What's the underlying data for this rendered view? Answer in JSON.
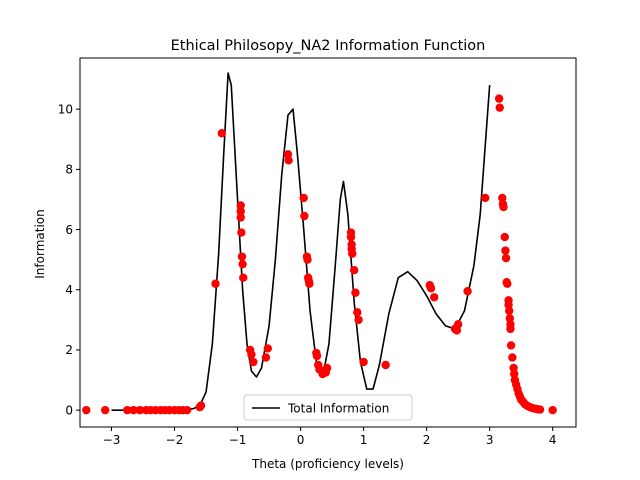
{
  "chart_data": {
    "type": "scatter",
    "title": "Ethical Philosopy_NA2 Information Function",
    "xlabel": "Theta (proficiency levels)",
    "ylabel": "Information",
    "xlim": [
      -3.5,
      4.37
    ],
    "ylim": [
      -0.56,
      11.7
    ],
    "xticks": [
      -3,
      -2,
      -1,
      0,
      1,
      2,
      3,
      4
    ],
    "yticks": [
      0,
      2,
      4,
      6,
      8,
      10
    ],
    "grid": false,
    "legend": {
      "position": "lower-center",
      "entries": [
        "Total Information"
      ]
    },
    "series": [
      {
        "name": "Total Information",
        "kind": "line",
        "color": "#000000",
        "points": [
          [
            -3.0,
            0.0
          ],
          [
            -2.5,
            0.0
          ],
          [
            -2.0,
            0.01
          ],
          [
            -1.8,
            0.02
          ],
          [
            -1.7,
            0.05
          ],
          [
            -1.6,
            0.15
          ],
          [
            -1.5,
            0.6
          ],
          [
            -1.4,
            2.2
          ],
          [
            -1.3,
            5.2
          ],
          [
            -1.22,
            8.5
          ],
          [
            -1.15,
            11.2
          ],
          [
            -1.1,
            10.8
          ],
          [
            -1.0,
            7.0
          ],
          [
            -0.92,
            4.0
          ],
          [
            -0.85,
            2.2
          ],
          [
            -0.78,
            1.3
          ],
          [
            -0.7,
            1.1
          ],
          [
            -0.62,
            1.4
          ],
          [
            -0.5,
            2.8
          ],
          [
            -0.4,
            5.0
          ],
          [
            -0.3,
            7.8
          ],
          [
            -0.2,
            9.8
          ],
          [
            -0.12,
            10.0
          ],
          [
            -0.05,
            8.5
          ],
          [
            0.05,
            6.0
          ],
          [
            0.15,
            3.3
          ],
          [
            0.25,
            1.6
          ],
          [
            0.35,
            1.1
          ],
          [
            0.45,
            2.2
          ],
          [
            0.55,
            4.8
          ],
          [
            0.63,
            7.0
          ],
          [
            0.68,
            7.6
          ],
          [
            0.75,
            6.5
          ],
          [
            0.85,
            3.6
          ],
          [
            0.95,
            1.6
          ],
          [
            1.05,
            0.7
          ],
          [
            1.15,
            0.7
          ],
          [
            1.25,
            1.5
          ],
          [
            1.4,
            3.2
          ],
          [
            1.55,
            4.4
          ],
          [
            1.7,
            4.6
          ],
          [
            1.85,
            4.3
          ],
          [
            2.0,
            3.8
          ],
          [
            2.15,
            3.2
          ],
          [
            2.3,
            2.8
          ],
          [
            2.45,
            2.7
          ],
          [
            2.6,
            3.3
          ],
          [
            2.75,
            4.8
          ],
          [
            2.85,
            6.5
          ],
          [
            2.93,
            8.8
          ],
          [
            3.0,
            10.8
          ]
        ]
      },
      {
        "name": "",
        "kind": "scatter",
        "color": "#ff0000",
        "points": [
          [
            -3.4,
            0.0
          ],
          [
            -3.1,
            0.0
          ],
          [
            -2.75,
            0.0
          ],
          [
            -2.65,
            0.0
          ],
          [
            -2.55,
            0.0
          ],
          [
            -2.45,
            0.0
          ],
          [
            -2.38,
            0.0
          ],
          [
            -2.3,
            0.0
          ],
          [
            -2.22,
            0.0
          ],
          [
            -2.15,
            0.0
          ],
          [
            -2.08,
            0.0
          ],
          [
            -2.0,
            0.0
          ],
          [
            -1.93,
            0.0
          ],
          [
            -1.87,
            0.0
          ],
          [
            -1.8,
            0.0
          ],
          [
            -1.6,
            0.1
          ],
          [
            -1.58,
            0.15
          ],
          [
            -1.35,
            4.2
          ],
          [
            -1.25,
            9.2
          ],
          [
            -0.95,
            6.8
          ],
          [
            -0.95,
            6.6
          ],
          [
            -0.95,
            6.4
          ],
          [
            -0.94,
            5.9
          ],
          [
            -0.93,
            5.1
          ],
          [
            -0.92,
            4.85
          ],
          [
            -0.91,
            4.4
          ],
          [
            -0.8,
            2.0
          ],
          [
            -0.78,
            1.85
          ],
          [
            -0.75,
            1.6
          ],
          [
            -0.55,
            1.75
          ],
          [
            -0.52,
            2.05
          ],
          [
            -0.2,
            8.5
          ],
          [
            -0.19,
            8.3
          ],
          [
            0.05,
            7.05
          ],
          [
            0.06,
            6.45
          ],
          [
            0.1,
            5.1
          ],
          [
            0.11,
            5.0
          ],
          [
            0.12,
            4.4
          ],
          [
            0.13,
            4.3
          ],
          [
            0.14,
            4.2
          ],
          [
            0.25,
            1.9
          ],
          [
            0.26,
            1.8
          ],
          [
            0.28,
            1.5
          ],
          [
            0.3,
            1.35
          ],
          [
            0.35,
            1.2
          ],
          [
            0.4,
            1.25
          ],
          [
            0.42,
            1.4
          ],
          [
            0.8,
            5.9
          ],
          [
            0.8,
            5.75
          ],
          [
            0.81,
            5.5
          ],
          [
            0.81,
            5.35
          ],
          [
            0.82,
            5.2
          ],
          [
            0.85,
            4.65
          ],
          [
            0.87,
            3.9
          ],
          [
            0.9,
            3.25
          ],
          [
            0.92,
            3.0
          ],
          [
            1.0,
            1.6
          ],
          [
            1.35,
            1.5
          ],
          [
            2.05,
            4.15
          ],
          [
            2.07,
            4.05
          ],
          [
            2.12,
            3.75
          ],
          [
            2.45,
            2.7
          ],
          [
            2.48,
            2.65
          ],
          [
            2.5,
            2.85
          ],
          [
            2.65,
            3.95
          ],
          [
            2.93,
            7.05
          ],
          [
            3.15,
            10.35
          ],
          [
            3.16,
            10.05
          ],
          [
            3.2,
            7.05
          ],
          [
            3.21,
            6.85
          ],
          [
            3.22,
            6.75
          ],
          [
            3.24,
            5.75
          ],
          [
            3.25,
            5.3
          ],
          [
            3.26,
            5.05
          ],
          [
            3.27,
            4.25
          ],
          [
            3.28,
            4.2
          ],
          [
            3.3,
            3.65
          ],
          [
            3.3,
            3.5
          ],
          [
            3.31,
            3.3
          ],
          [
            3.32,
            3.05
          ],
          [
            3.33,
            2.85
          ],
          [
            3.33,
            2.7
          ],
          [
            3.34,
            2.15
          ],
          [
            3.36,
            1.75
          ],
          [
            3.38,
            1.4
          ],
          [
            3.39,
            1.2
          ],
          [
            3.4,
            1.0
          ],
          [
            3.42,
            0.85
          ],
          [
            3.44,
            0.7
          ],
          [
            3.46,
            0.55
          ],
          [
            3.48,
            0.45
          ],
          [
            3.5,
            0.35
          ],
          [
            3.53,
            0.28
          ],
          [
            3.56,
            0.2
          ],
          [
            3.6,
            0.14
          ],
          [
            3.64,
            0.1
          ],
          [
            3.68,
            0.07
          ],
          [
            3.72,
            0.05
          ],
          [
            3.76,
            0.03
          ],
          [
            3.8,
            0.02
          ],
          [
            4.0,
            0.0
          ]
        ]
      }
    ]
  }
}
